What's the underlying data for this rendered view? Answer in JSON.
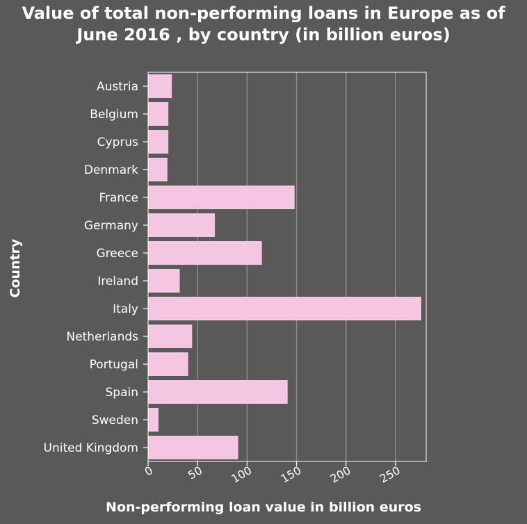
{
  "chart_data": {
    "type": "bar",
    "orientation": "horizontal",
    "title": "Value of total non-performing loans in Europe as of June 2016 , by country (in billion euros)",
    "xlabel": "Non-performing loan value in billion euros",
    "ylabel": "Country",
    "categories": [
      "Austria",
      "Belgium",
      "Cyprus",
      "Denmark",
      "France",
      "Germany",
      "Greece",
      "Ireland",
      "Italy",
      "Netherlands",
      "Portugal",
      "Spain",
      "Sweden",
      "United Kingdom"
    ],
    "values": [
      24,
      20.5,
      20.5,
      19.5,
      148,
      67.5,
      115,
      32,
      276,
      44.5,
      40.5,
      141,
      10.5,
      91
    ],
    "xticks": [
      "0",
      "50",
      "100",
      "150",
      "200",
      "250"
    ],
    "xlim": [
      0,
      281
    ],
    "grid": "vertical",
    "bar_color": "#f4c6e2",
    "background_color": "#595959"
  }
}
